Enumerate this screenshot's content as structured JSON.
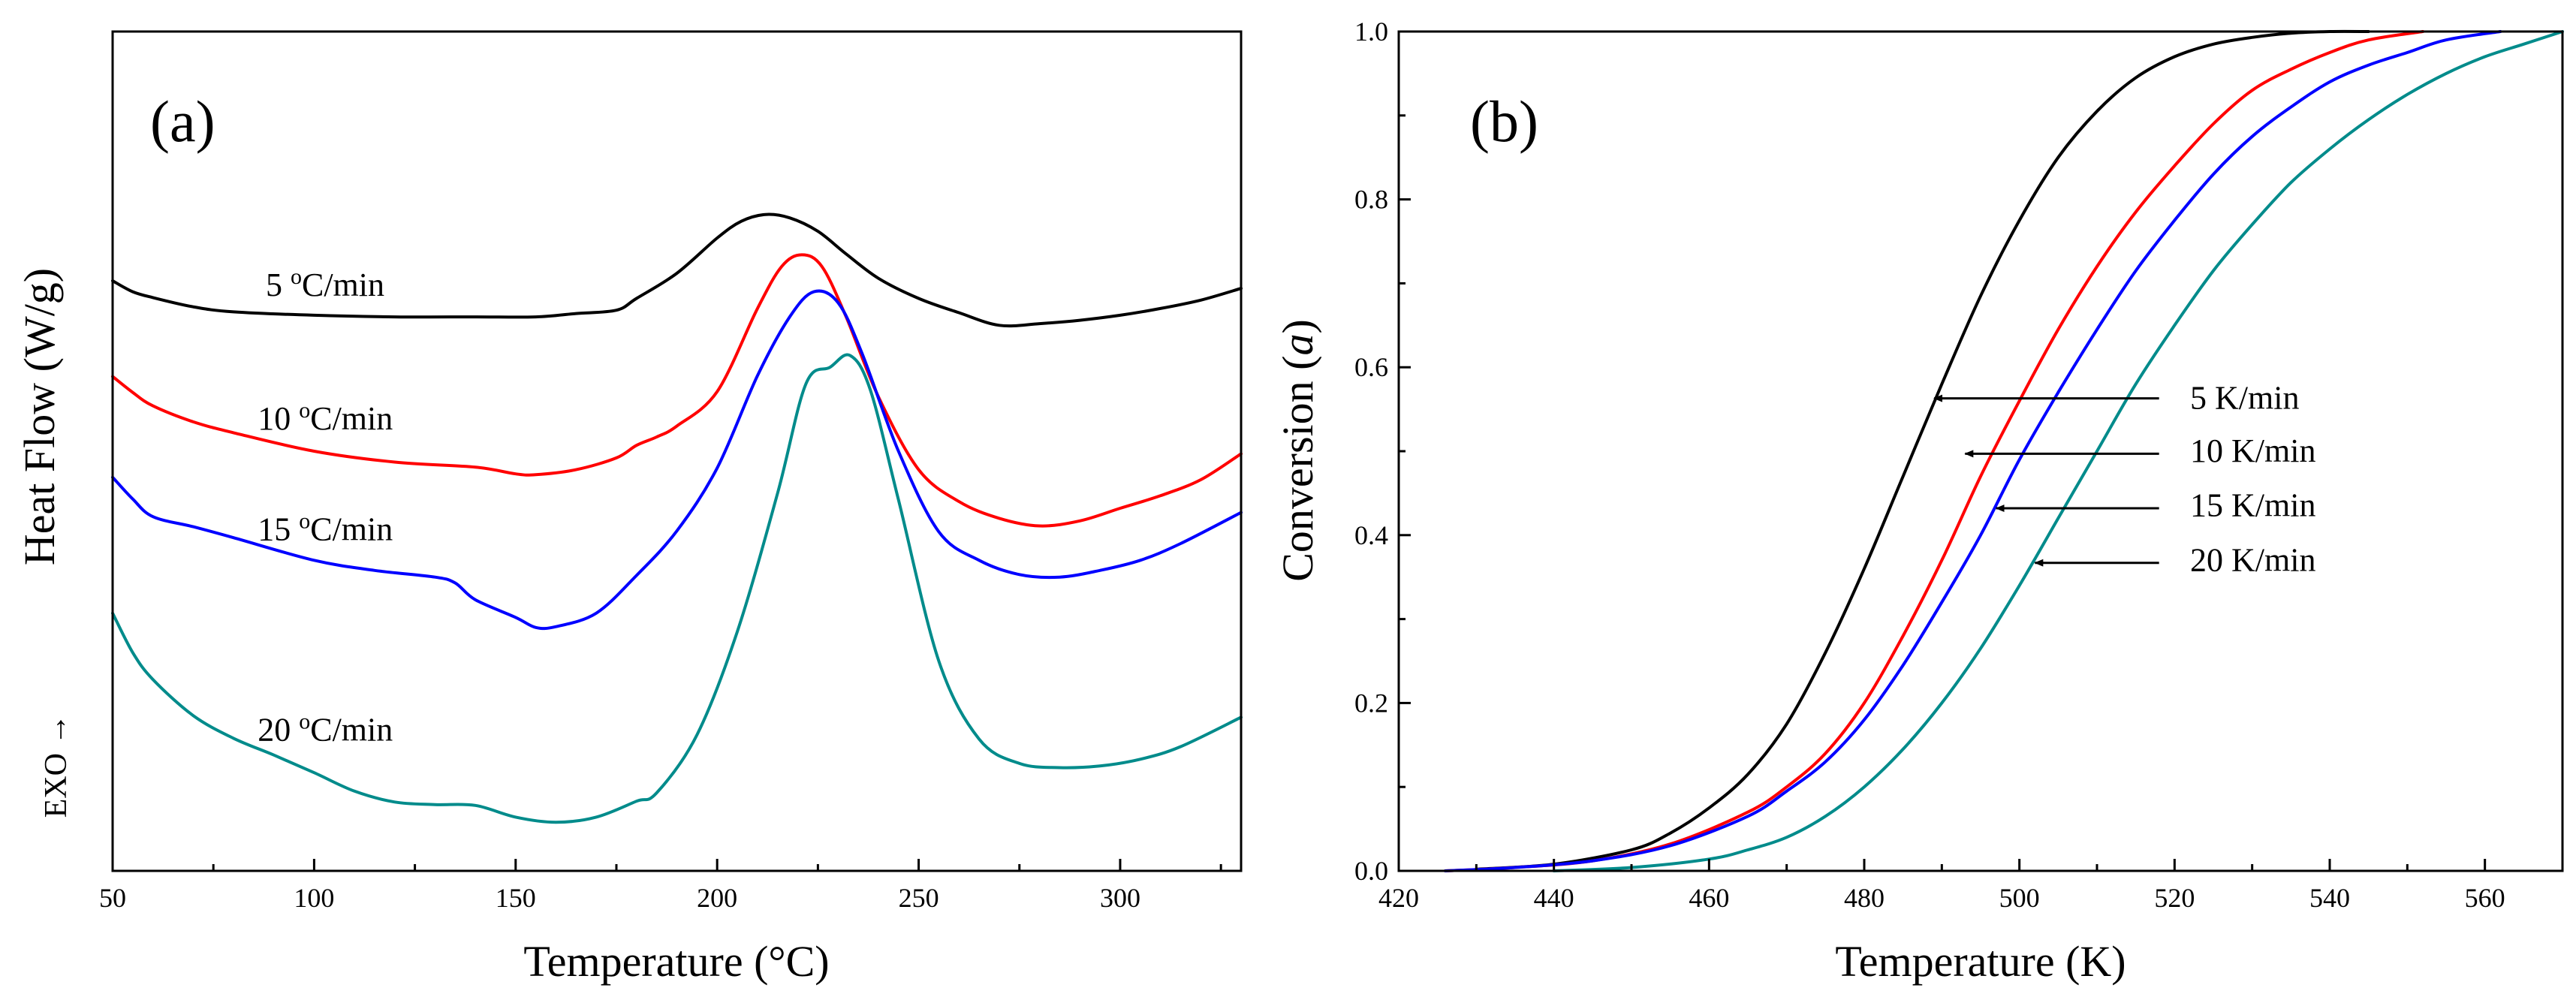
{
  "chart_data": [
    {
      "type": "line",
      "panel_label": "(a)",
      "xlabel": "Temperature (°C)",
      "ylabel": "Heat Flow (W/g)",
      "exo_label": "EXO →",
      "xlim": [
        50,
        330
      ],
      "ylim": [
        0,
        1
      ],
      "x_ticks": [
        50,
        100,
        150,
        200,
        250,
        300
      ],
      "x_tick_labels": [
        "50",
        "100",
        "150",
        "200",
        "250",
        "300"
      ],
      "y_ticks_shown": false,
      "series": [
        {
          "name": "5 °C/min",
          "label_main": "5 ",
          "label_sup": "o",
          "label_tail": "C/min",
          "label_at": [
            88,
            0.685
          ],
          "color": "#000000",
          "x": [
            50,
            55,
            60,
            70,
            80,
            100,
            120,
            140,
            155,
            165,
            175,
            180,
            190,
            200,
            206,
            212,
            218,
            225,
            232,
            240,
            250,
            260,
            270,
            280,
            290,
            300,
            310,
            320,
            330
          ],
          "y": [
            0.703,
            0.69,
            0.683,
            0.672,
            0.666,
            0.662,
            0.66,
            0.66,
            0.66,
            0.664,
            0.668,
            0.682,
            0.712,
            0.754,
            0.774,
            0.782,
            0.778,
            0.762,
            0.735,
            0.706,
            0.682,
            0.665,
            0.65,
            0.652,
            0.656,
            0.662,
            0.67,
            0.68,
            0.694
          ]
        },
        {
          "name": "10 °C/min",
          "label_main": "10 ",
          "label_sup": "o",
          "label_tail": "C/min",
          "label_at": [
            86,
            0.526
          ],
          "color": "#ff0000",
          "x": [
            50,
            55,
            60,
            70,
            80,
            100,
            120,
            140,
            150,
            155,
            165,
            175,
            180,
            185,
            190,
            200,
            210,
            216,
            221,
            226,
            232,
            240,
            250,
            260,
            270,
            280,
            290,
            300,
            310,
            320,
            330
          ],
          "y": [
            0.589,
            0.57,
            0.554,
            0.535,
            0.522,
            0.5,
            0.487,
            0.481,
            0.473,
            0.472,
            0.478,
            0.492,
            0.507,
            0.517,
            0.53,
            0.571,
            0.67,
            0.72,
            0.734,
            0.72,
            0.66,
            0.565,
            0.478,
            0.44,
            0.42,
            0.411,
            0.417,
            0.432,
            0.447,
            0.466,
            0.497
          ]
        },
        {
          "name": "15 °C/min",
          "label_main": "15 ",
          "label_sup": "o",
          "label_tail": "C/min",
          "label_at": [
            86,
            0.394
          ],
          "color": "#0000ff",
          "x": [
            50,
            55,
            60,
            70,
            80,
            100,
            115,
            130,
            135,
            140,
            150,
            155,
            160,
            170,
            180,
            190,
            200,
            210,
            218,
            224,
            230,
            236,
            245,
            255,
            265,
            275,
            285,
            295,
            305,
            315,
            330
          ],
          "y": [
            0.469,
            0.443,
            0.422,
            0.41,
            0.397,
            0.37,
            0.358,
            0.35,
            0.343,
            0.323,
            0.302,
            0.29,
            0.291,
            0.307,
            0.352,
            0.405,
            0.48,
            0.59,
            0.66,
            0.69,
            0.677,
            0.616,
            0.5,
            0.404,
            0.37,
            0.353,
            0.35,
            0.358,
            0.37,
            0.39,
            0.427
          ]
        },
        {
          "name": "20 °C/min",
          "label_main": "20 ",
          "label_sup": "o",
          "label_tail": "C/min",
          "label_at": [
            86,
            0.155
          ],
          "color": "#008b8b",
          "x": [
            50,
            55,
            60,
            70,
            80,
            90,
            100,
            110,
            120,
            130,
            140,
            150,
            160,
            170,
            180,
            185,
            195,
            205,
            215,
            222,
            228,
            233,
            238,
            245,
            255,
            265,
            275,
            285,
            295,
            305,
            315,
            330
          ],
          "y": [
            0.307,
            0.26,
            0.228,
            0.185,
            0.158,
            0.138,
            0.117,
            0.095,
            0.082,
            0.079,
            0.078,
            0.064,
            0.058,
            0.064,
            0.083,
            0.093,
            0.162,
            0.285,
            0.45,
            0.58,
            0.6,
            0.614,
            0.573,
            0.442,
            0.25,
            0.157,
            0.128,
            0.123,
            0.125,
            0.133,
            0.148,
            0.183
          ]
        }
      ]
    },
    {
      "type": "line",
      "panel_label": "(b)",
      "xlabel": "Temperature (K)",
      "ylabel_main": "Conversion (",
      "ylabel_italic": "a",
      "ylabel_close": ")",
      "xlim": [
        420,
        570
      ],
      "ylim": [
        0.0,
        1.0
      ],
      "x_ticks": [
        420,
        440,
        460,
        480,
        500,
        520,
        540,
        560
      ],
      "x_tick_labels": [
        "420",
        "440",
        "460",
        "480",
        "500",
        "520",
        "540",
        "560"
      ],
      "y_ticks": [
        0.0,
        0.2,
        0.4,
        0.6,
        0.8,
        1.0
      ],
      "y_tick_labels": [
        "0.0",
        "0.2",
        "0.4",
        "0.6",
        "0.8",
        "1.0"
      ],
      "series": [
        {
          "name": "5 K/min",
          "color": "#000000",
          "x": [
            430,
            440,
            450,
            455,
            460,
            465,
            470,
            475,
            480,
            485,
            490,
            495,
            500,
            505,
            510,
            515,
            520,
            525,
            530,
            535,
            540,
            545
          ],
          "y": [
            0.002,
            0.008,
            0.025,
            0.045,
            0.075,
            0.115,
            0.175,
            0.26,
            0.36,
            0.47,
            0.58,
            0.685,
            0.775,
            0.85,
            0.905,
            0.945,
            0.97,
            0.985,
            0.993,
            0.998,
            1.0,
            1.0
          ],
          "label_at": [
            522,
            0.563
          ],
          "arrow_from": [
            518,
            0.563
          ],
          "arrow_to": [
            489,
            0.563
          ]
        },
        {
          "name": "10 K/min",
          "color": "#ff0000",
          "x": [
            426,
            435,
            445,
            455,
            465,
            470,
            475,
            480,
            485,
            490,
            495,
            500,
            505,
            510,
            515,
            520,
            525,
            530,
            535,
            540,
            545,
            552
          ],
          "y": [
            0.0,
            0.004,
            0.012,
            0.032,
            0.07,
            0.1,
            0.14,
            0.2,
            0.28,
            0.37,
            0.47,
            0.56,
            0.645,
            0.72,
            0.785,
            0.84,
            0.89,
            0.93,
            0.955,
            0.975,
            0.99,
            1.0
          ],
          "label_at": [
            522,
            0.5
          ],
          "arrow_from": [
            518,
            0.497
          ],
          "arrow_to": [
            493,
            0.497
          ]
        },
        {
          "name": "15 K/min",
          "color": "#0000ff",
          "x": [
            426,
            435,
            445,
            455,
            465,
            470,
            475,
            480,
            485,
            490,
            495,
            500,
            505,
            510,
            515,
            520,
            525,
            530,
            535,
            540,
            545,
            550,
            555,
            562
          ],
          "y": [
            0.0,
            0.004,
            0.012,
            0.03,
            0.065,
            0.095,
            0.13,
            0.18,
            0.245,
            0.32,
            0.4,
            0.49,
            0.57,
            0.645,
            0.715,
            0.775,
            0.83,
            0.875,
            0.91,
            0.94,
            0.96,
            0.975,
            0.99,
            1.0
          ],
          "label_at": [
            522,
            0.435
          ],
          "arrow_from": [
            518,
            0.432
          ],
          "arrow_to": [
            497,
            0.432
          ]
        },
        {
          "name": "20 K/min",
          "color": "#008b8b",
          "x": [
            440,
            450,
            460,
            465,
            470,
            475,
            480,
            485,
            490,
            495,
            500,
            505,
            510,
            515,
            520,
            525,
            530,
            535,
            540,
            545,
            550,
            555,
            560,
            565,
            570
          ],
          "y": [
            0.0,
            0.004,
            0.014,
            0.025,
            0.04,
            0.065,
            0.1,
            0.145,
            0.2,
            0.265,
            0.34,
            0.42,
            0.5,
            0.58,
            0.65,
            0.715,
            0.77,
            0.82,
            0.86,
            0.895,
            0.925,
            0.95,
            0.97,
            0.985,
            1.0
          ],
          "label_at": [
            522,
            0.37
          ],
          "arrow_from": [
            518,
            0.367
          ],
          "arrow_to": [
            502,
            0.367
          ]
        }
      ]
    }
  ]
}
